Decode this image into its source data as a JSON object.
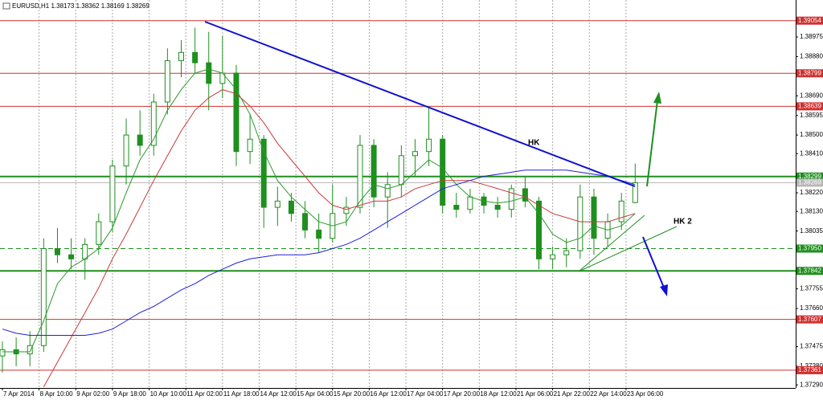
{
  "chart_data": {
    "type": "candlestick",
    "title": "EURUSD,H1  1.38173 1.38362 1.38169 1.38269",
    "annotations": [
      "HK",
      "HK 2"
    ],
    "x": [
      0,
      6,
      12,
      18,
      24,
      30,
      36,
      42,
      48,
      54,
      60,
      66,
      72,
      78,
      84,
      90,
      96,
      102,
      108,
      114,
      120,
      126,
      132,
      138,
      144,
      150,
      156,
      162,
      168,
      174,
      180,
      186,
      192,
      198,
      204,
      210,
      216,
      222,
      228,
      234,
      240,
      246,
      252,
      258,
      264,
      270,
      276
    ],
    "open": [
      1.3743,
      1.3746,
      1.3744,
      1.3748,
      1.3795,
      1.3792,
      1.379,
      1.3797,
      1.3808,
      1.3835,
      1.385,
      1.3845,
      1.3866,
      1.3886,
      1.389,
      1.3885,
      1.3875,
      1.388,
      1.3842,
      1.3848,
      1.3815,
      1.3818,
      1.3812,
      1.3804,
      1.38,
      1.3812,
      1.3815,
      1.3845,
      1.382,
      1.3826,
      1.384,
      1.3842,
      1.3848,
      1.3816,
      1.3814,
      1.382,
      1.3816,
      1.3814,
      1.3824,
      1.3818,
      1.379,
      1.3792,
      1.3794,
      1.382,
      1.38,
      1.3808,
      1.38173
    ],
    "high": [
      1.375,
      1.3752,
      1.3755,
      1.38,
      1.3805,
      1.38,
      1.38,
      1.3812,
      1.3838,
      1.3858,
      1.3862,
      1.387,
      1.3892,
      1.3896,
      1.3902,
      1.39,
      1.3898,
      1.3884,
      1.386,
      1.385,
      1.3825,
      1.3822,
      1.3818,
      1.3812,
      1.3826,
      1.382,
      1.385,
      1.3848,
      1.3832,
      1.3845,
      1.3848,
      1.3864,
      1.385,
      1.3822,
      1.3824,
      1.3822,
      1.382,
      1.3826,
      1.383,
      1.382,
      1.3796,
      1.38,
      1.3826,
      1.3824,
      1.3812,
      1.3822,
      1.38362
    ],
    "low": [
      1.3735,
      1.3738,
      1.3738,
      1.3745,
      1.3788,
      1.3785,
      1.378,
      1.3792,
      1.3803,
      1.3826,
      1.384,
      1.384,
      1.386,
      1.3878,
      1.388,
      1.3862,
      1.3868,
      1.3835,
      1.3836,
      1.3805,
      1.3806,
      1.3808,
      1.38,
      1.3793,
      1.3798,
      1.3806,
      1.3812,
      1.3815,
      1.3805,
      1.382,
      1.383,
      1.3835,
      1.3812,
      1.381,
      1.3812,
      1.3812,
      1.381,
      1.381,
      1.3815,
      1.3785,
      1.3785,
      1.3786,
      1.379,
      1.3792,
      1.3796,
      1.3804,
      1.38169
    ],
    "close": [
      1.3746,
      1.3744,
      1.3748,
      1.3795,
      1.3792,
      1.379,
      1.3797,
      1.3808,
      1.3835,
      1.385,
      1.3845,
      1.3866,
      1.3886,
      1.389,
      1.3885,
      1.3875,
      1.388,
      1.3842,
      1.3848,
      1.3815,
      1.3818,
      1.3812,
      1.3804,
      1.38,
      1.3812,
      1.3815,
      1.3845,
      1.382,
      1.3826,
      1.384,
      1.3842,
      1.3848,
      1.3816,
      1.3814,
      1.382,
      1.3816,
      1.3814,
      1.3824,
      1.3818,
      1.379,
      1.3792,
      1.3794,
      1.382,
      1.38,
      1.3808,
      1.3818,
      1.38269
    ],
    "up_color": "#ffffff",
    "down_color": "#1f8f1f",
    "candle_color": "#1f8f1f",
    "series": [
      {
        "color": "#2a9a2a",
        "values": [
          1.3745,
          1.3745,
          1.3745,
          1.376,
          1.3778,
          1.3786,
          1.379,
          1.3795,
          1.3805,
          1.3822,
          1.3838,
          1.3848,
          1.3862,
          1.3872,
          1.388,
          1.3882,
          1.388,
          1.3872,
          1.386,
          1.3842,
          1.3828,
          1.382,
          1.3814,
          1.3808,
          1.3806,
          1.3808,
          1.3818,
          1.3826,
          1.3824,
          1.3826,
          1.3832,
          1.3838,
          1.3834,
          1.3826,
          1.382,
          1.3818,
          1.3817,
          1.3818,
          1.382,
          1.3812,
          1.3802,
          1.3798,
          1.38,
          1.3806,
          1.3804,
          1.3806,
          1.3812
        ]
      },
      {
        "color": "#c83c3c",
        "values": [
          null,
          null,
          null,
          1.3728,
          1.374,
          1.3752,
          1.3764,
          1.3776,
          1.379,
          1.3802,
          1.3815,
          1.3828,
          1.384,
          1.3852,
          1.3862,
          1.3868,
          1.3872,
          1.387,
          1.3864,
          1.3856,
          1.3846,
          1.3838,
          1.383,
          1.3822,
          1.3816,
          1.3814,
          1.3816,
          1.3818,
          1.3818,
          1.382,
          1.3824,
          1.3826,
          1.3828,
          1.3828,
          1.3828,
          1.3826,
          1.3824,
          1.3822,
          1.382,
          1.3816,
          1.3812,
          1.381,
          1.3808,
          1.3808,
          1.3808,
          1.381,
          1.3812
        ]
      },
      {
        "color": "#2020d8",
        "values": [
          1.3756,
          1.3754,
          1.3753,
          1.3753,
          1.3753,
          1.3753,
          1.3753,
          1.3754,
          1.3756,
          1.376,
          1.3764,
          1.3767,
          1.3771,
          1.3775,
          1.3778,
          1.3782,
          1.3785,
          1.3788,
          1.379,
          1.3791,
          1.3792,
          1.3792,
          1.3792,
          1.3793,
          1.3795,
          1.3797,
          1.38,
          1.3804,
          1.3808,
          1.3812,
          1.3816,
          1.382,
          1.3824,
          1.3826,
          1.3828,
          1.383,
          1.3831,
          1.3832,
          1.3833,
          1.3833,
          1.3833,
          1.3833,
          1.3832,
          1.3831,
          1.383,
          1.3828,
          1.3826
        ]
      }
    ],
    "xlim": [
      0,
      346
    ],
    "xticks": [
      {
        "value": 0,
        "label": "7 Apr 2014"
      },
      {
        "value": 16,
        "label": "8 Apr 10:00"
      },
      {
        "value": 32,
        "label": "9 Apr 02:00"
      },
      {
        "value": 48,
        "label": "9 Apr 18:00"
      },
      {
        "value": 64,
        "label": "10 Apr 10:00"
      },
      {
        "value": 80,
        "label": "11 Apr 02:00"
      },
      {
        "value": 96,
        "label": "11 Apr 18:00"
      },
      {
        "value": 112,
        "label": "14 Apr 12:00"
      },
      {
        "value": 128,
        "label": "15 Apr 04:00"
      },
      {
        "value": 144,
        "label": "15 Apr 20:00"
      },
      {
        "value": 160,
        "label": "16 Apr 12:00"
      },
      {
        "value": 176,
        "label": "17 Apr 04:00"
      },
      {
        "value": 192,
        "label": "17 Apr 20:00"
      },
      {
        "value": 208,
        "label": "18 Apr 12:00"
      },
      {
        "value": 224,
        "label": "21 Apr 06:00"
      },
      {
        "value": 240,
        "label": "21 Apr 22:00"
      },
      {
        "value": 256,
        "label": "22 Apr 14:00"
      },
      {
        "value": 272,
        "label": "23 Apr 06:00"
      }
    ],
    "ylim": [
      1.37275,
      1.39154
    ],
    "yticks": [
      1.38975,
      {
        "value": 1.3888,
        "label": "1.38880"
      },
      {
        "value": 1.3869,
        "label": "1.38690"
      },
      1.38595,
      {
        "value": 1.385,
        "label": "1.38500"
      },
      {
        "value": 1.3841,
        "label": "1.38410"
      },
      {
        "value": 1.3822,
        "label": "1.38220"
      },
      {
        "value": 1.3813,
        "label": "1.38130"
      },
      1.38035,
      1.37755,
      {
        "value": 1.3766,
        "label": "1.37660"
      },
      1.37475,
      {
        "value": 1.3738,
        "label": "1.37380"
      },
      {
        "value": 1.3729,
        "label": "1.37290"
      }
    ],
    "grid": true,
    "hlines": [
      {
        "value": 1.39054,
        "color": "#d03030"
      },
      {
        "value": 1.38799,
        "color": "#d03030"
      },
      {
        "value": 1.38639,
        "color": "#d03030"
      },
      {
        "value": 1.38299,
        "color": "#1f8f1f",
        "width": 2
      },
      {
        "value": 1.38269,
        "color": "#b8b8b8"
      },
      {
        "value": {
          "value": 1.3795,
          "label": "1.37950"
        },
        "color": "#1f8f1f",
        "dashed": true
      },
      {
        "value": 1.37842,
        "color": "#1f8f1f",
        "width": 2
      },
      {
        "value": 1.37607,
        "color": "#d03030"
      },
      {
        "value": 1.37361,
        "color": "#d03030"
      }
    ]
  }
}
